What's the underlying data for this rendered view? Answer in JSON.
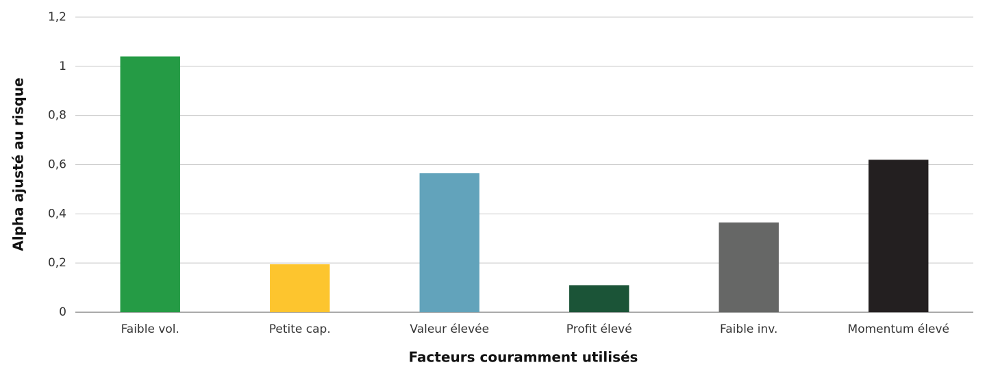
{
  "chart_data": {
    "type": "bar",
    "x_label": "Facteurs couramment utilisés",
    "y_label": "Alpha ajusté au risque",
    "categories": [
      "Faible vol.",
      "Petite cap.",
      "Valeur élevée",
      "Profit élevé",
      "Faible inv.",
      "Momentum élevé"
    ],
    "values": [
      1.04,
      0.195,
      0.565,
      0.11,
      0.365,
      0.62
    ],
    "colors": [
      "#259b45",
      "#fdc52e",
      "#62a3bb",
      "#1b5437",
      "#666766",
      "#231f20"
    ],
    "ylim": [
      0,
      1.2
    ],
    "yticks": [
      0,
      {
        "value": 0.2,
        "label": "0,2"
      },
      {
        "value": 0.4,
        "label": "0,4"
      },
      {
        "value": 0.6,
        "label": "0,6"
      },
      {
        "value": 0.8,
        "label": "0,8"
      },
      1,
      {
        "value": 1.2,
        "label": "1,2"
      }
    ],
    "grid": true
  }
}
